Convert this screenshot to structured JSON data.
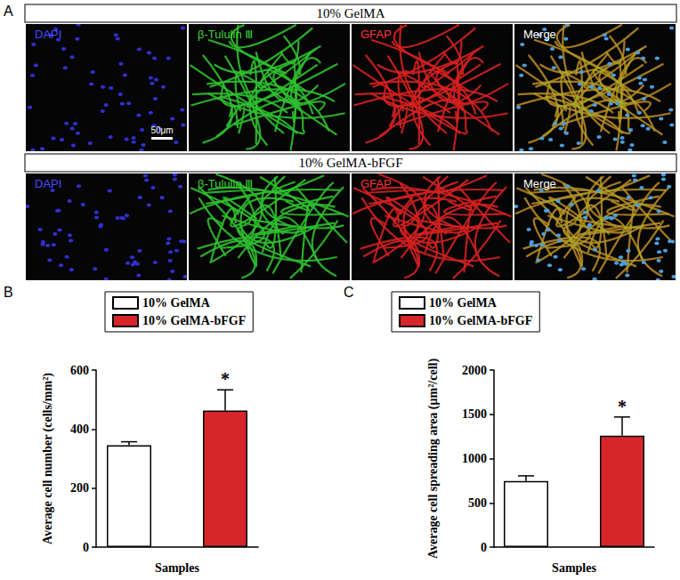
{
  "image_panel": {
    "label": "A",
    "rows": [
      {
        "title": "10% GelMA",
        "channels": [
          "DAPI",
          "β-Tululin Ⅲ",
          "GFAP",
          "Merge"
        ],
        "scale_bar": "50μm"
      },
      {
        "title": "10% GelMA-bFGF",
        "channels": [
          "DAPI",
          "β-Tululin Ⅲ",
          "GFAP",
          "Merge"
        ]
      }
    ]
  },
  "chart_data": [
    {
      "type": "bar",
      "annotations": [
        {
          "text": "B"
        },
        {
          "series": "10% GelMA-bFGF",
          "text": "*"
        }
      ],
      "x_label": "Samples",
      "y_label": "Average cell number (cells/mm²)",
      "categories": [
        null
      ],
      "series": [
        {
          "name": "10% GelMA",
          "color": "#ffffff",
          "values": [
            345
          ],
          "errors": [
            12
          ]
        },
        {
          "name": "10% GelMA-bFGF",
          "color": "#d7262a",
          "values": [
            463
          ],
          "errors": [
            70
          ]
        }
      ],
      "ylim": [
        0,
        600
      ],
      "yticks": [
        0,
        200,
        400,
        600
      ],
      "legend": "upper left",
      "tick_labels": "y",
      "grid": false
    },
    {
      "type": "bar",
      "annotations": [
        {
          "text": "C"
        },
        {
          "series": "10% GelMA-bFGF",
          "text": "*"
        }
      ],
      "x_label": "Samples",
      "y_label": "Average cell spreading area (μm²/cell)",
      "categories": [
        null
      ],
      "series": [
        {
          "name": "10% GelMA",
          "color": "#ffffff",
          "values": [
            745
          ],
          "errors": [
            60
          ]
        },
        {
          "name": "10% GelMA-bFGF",
          "color": "#d7262a",
          "values": [
            1260
          ],
          "errors": [
            210
          ]
        }
      ],
      "ylim": [
        0,
        2000
      ],
      "yticks": [
        0,
        500,
        1000,
        1500,
        2000
      ],
      "legend": "upper left",
      "tick_labels": "y",
      "grid": false
    }
  ]
}
